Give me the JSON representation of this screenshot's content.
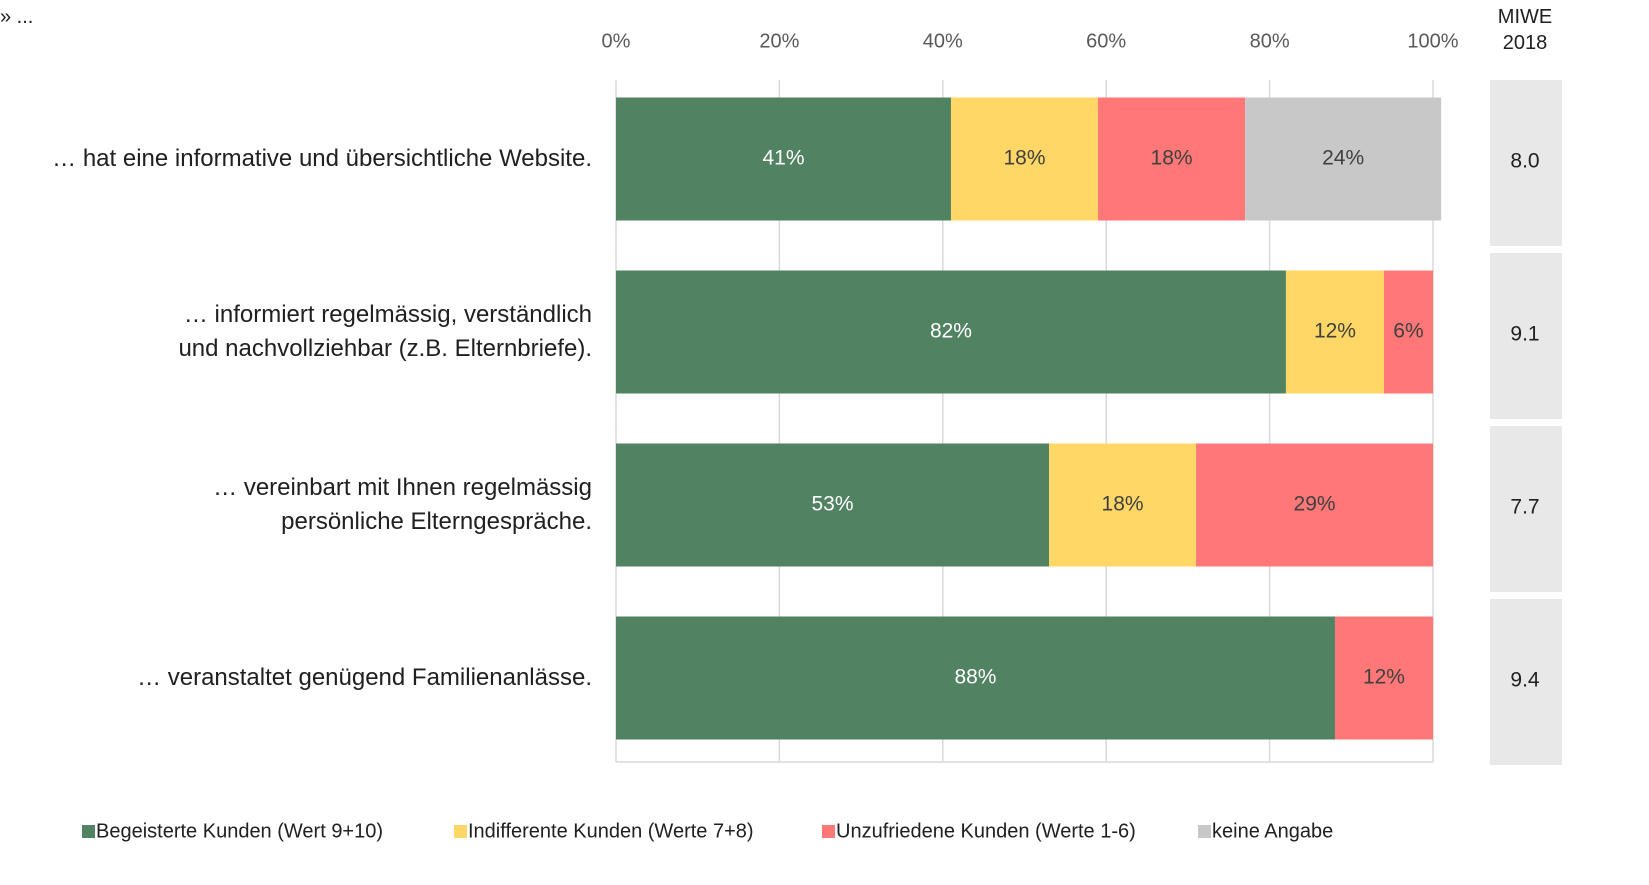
{
  "chart_data": {
    "type": "stacked_barh",
    "header_text": "» ...",
    "categories": [
      "… hat eine informative und übersichtliche Website.",
      "… informiert regelmässig, verständlich\nund nachvollziehbar (z.B. Elternbriefe).",
      "… vereinbart mit Ihnen regelmässig\npersönliche Elterngespräche.",
      "… veranstaltet genügend Familienanlässe."
    ],
    "series": [
      {
        "name": "Begeisterte Kunden (Wert 9+10)",
        "color": "#518262",
        "label_color": "#ffffff",
        "values": [
          41,
          82,
          53,
          88
        ],
        "value_labels": [
          "41%",
          "82%",
          "53%",
          "88%"
        ]
      },
      {
        "name": "Indifferente Kunden (Werte 7+8)",
        "color": "#ffd766",
        "label_color": "#404040",
        "values": [
          18,
          12,
          18,
          null
        ],
        "value_labels": [
          "18%",
          "12%",
          "18%",
          null
        ]
      },
      {
        "name": "Unzufriedene Kunden (Werte 1-6)",
        "color": "#ff7777",
        "label_color": "#404040",
        "values": [
          18,
          6,
          29,
          12
        ],
        "value_labels": [
          "18%",
          "6%",
          "29%",
          "12%"
        ]
      },
      {
        "name": "keine Angabe",
        "color": "#c8c8c8",
        "label_color": "#404040",
        "values": [
          24,
          null,
          null,
          null
        ],
        "value_labels": [
          "24%",
          null,
          null,
          null
        ]
      }
    ],
    "xlim": [
      0,
      100
    ],
    "xticks": [
      {
        "value": 0,
        "label": "0%"
      },
      {
        "value": 20,
        "label": "20%"
      },
      {
        "value": 40,
        "label": "40%"
      },
      {
        "value": 60,
        "label": "60%"
      },
      {
        "value": 80,
        "label": "80%"
      },
      {
        "value": 100,
        "label": "100%"
      }
    ],
    "grid": true,
    "side_column": {
      "title": "MIWE\n2018",
      "values": [
        8.0,
        9.1,
        7.7,
        9.4
      ],
      "value_labels": [
        "8.0",
        "9.1",
        "7.7",
        "9.4"
      ]
    }
  }
}
